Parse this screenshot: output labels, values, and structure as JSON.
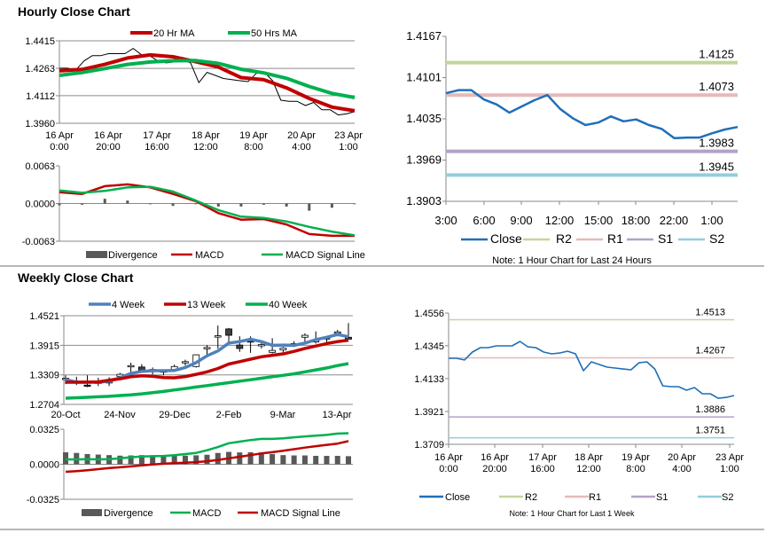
{
  "sections": [
    {
      "title": "Hourly Close Chart"
    },
    {
      "title": "Weekly Close Chart"
    }
  ],
  "chart_data": [
    {
      "type": "line",
      "title": "",
      "ylim": [
        1.396,
        1.4415
      ],
      "yticks": [
        "1.4415",
        "1.4263",
        "1.4112",
        "1.3960"
      ],
      "xticks": [
        [
          "16 Apr",
          "0:00"
        ],
        [
          "16 Apr",
          "20:00"
        ],
        [
          "17 Apr",
          "16:00"
        ],
        [
          "18 Apr",
          "12:00"
        ],
        [
          "19 Apr",
          "8:00"
        ],
        [
          "20 Apr",
          "4:00"
        ],
        [
          "23 Apr",
          "1:00"
        ]
      ],
      "grid": true,
      "legend": "top",
      "series": [
        {
          "type": "line",
          "color": "#000000",
          "values": [
            1.4264,
            1.4264,
            1.4253,
            1.4304,
            1.4333,
            1.4333,
            1.4344,
            1.4344,
            1.4344,
            1.4373,
            1.4338,
            1.4333,
            1.4304,
            1.4293,
            1.4298,
            1.431,
            1.4293,
            1.4184,
            1.4241,
            1.4224,
            1.4207,
            1.4201,
            1.4195,
            1.419,
            1.4235,
            1.4241,
            1.4195,
            1.4087,
            1.4081,
            1.4081,
            1.4058,
            1.4075,
            1.4035,
            1.4035,
            1.4006,
            1.4012,
            1.4024
          ]
        },
        {
          "type": "line",
          "name": "20 Hr MA",
          "color": "#c00000",
          "values": [
            1.4249,
            1.4257,
            1.4285,
            1.432,
            1.4337,
            1.4327,
            1.43,
            1.427,
            1.4212,
            1.42,
            1.4155,
            1.4097,
            1.4049,
            1.4029
          ]
        },
        {
          "type": "line",
          "name": "50 Hrs MA",
          "color": "#00b050",
          "values": [
            1.4224,
            1.424,
            1.4262,
            1.4285,
            1.4298,
            1.4305,
            1.4306,
            1.429,
            1.4258,
            1.4238,
            1.4208,
            1.4163,
            1.4125,
            1.4102
          ]
        }
      ]
    },
    {
      "type": "line",
      "title": "",
      "ylim": [
        -0.0063,
        0.0063
      ],
      "yticks": [
        "0.0063",
        "0.0000",
        "-0.0063"
      ],
      "xticks": [],
      "grid": false,
      "legend": "bottom",
      "series": [
        {
          "type": "bar",
          "name": "Divergence",
          "color": "#595959",
          "values": [
            -0.0003,
            -0.0002,
            0.0008,
            0.0005,
            -0.0001,
            -0.0004,
            -0.0001,
            -0.0005,
            -0.0005,
            -0.0002,
            -0.0005,
            -0.0012,
            -0.0007,
            -0.0001
          ]
        },
        {
          "type": "line",
          "name": "MACD",
          "color": "#c00000",
          "values": [
            0.0019,
            0.0016,
            0.0029,
            0.0032,
            0.0027,
            0.0016,
            0.0004,
            -0.0016,
            -0.0027,
            -0.0026,
            -0.0035,
            -0.0051,
            -0.0054,
            -0.0054
          ]
        },
        {
          "type": "line",
          "name": "MACD Signal Line",
          "color": "#00b050",
          "values": [
            0.0022,
            0.0018,
            0.0021,
            0.0027,
            0.0028,
            0.002,
            0.0005,
            -0.0011,
            -0.0022,
            -0.0024,
            -0.003,
            -0.0039,
            -0.0047,
            -0.0053
          ]
        }
      ]
    },
    {
      "type": "line",
      "title": "",
      "ylim": [
        1.3903,
        1.4167
      ],
      "yticks": [
        "1.4167",
        "1.4101",
        "1.4035",
        "1.3969",
        "1.3903"
      ],
      "xticks": [
        "3:00",
        "6:00",
        "9:00",
        "12:00",
        "15:00",
        "18:00",
        "22:00",
        "1:00"
      ],
      "grid": false,
      "legend": "bottom",
      "note": "Note: 1 Hour Chart for Last 24 Hours",
      "series": [
        {
          "type": "line",
          "name": "Close",
          "color": "#1f6fb8",
          "values": [
            1.4076,
            1.4081,
            1.4081,
            1.4066,
            1.4058,
            1.4045,
            1.4055,
            1.4065,
            1.4073,
            1.4051,
            1.4036,
            1.4025,
            1.4029,
            1.4039,
            1.4031,
            1.4034,
            1.4025,
            1.4019,
            1.4004,
            1.4005,
            1.4005,
            1.4012,
            1.4018,
            1.4022
          ]
        }
      ],
      "levels": [
        {
          "name": "R2",
          "value": 1.4125,
          "label": "1.4125",
          "color": "#c3d69b"
        },
        {
          "name": "R1",
          "value": 1.4073,
          "label": "1.4073",
          "color": "#e6b9b8"
        },
        {
          "name": "S1",
          "value": 1.3983,
          "label": "1.3983",
          "color": "#b3a2c7"
        },
        {
          "name": "S2",
          "value": 1.3945,
          "label": "1.3945",
          "color": "#93cddd"
        }
      ]
    },
    {
      "type": "line",
      "title": "",
      "ylim": [
        1.3709,
        1.4556
      ],
      "yticks": [
        "1.4556",
        "1.4345",
        "1.4133",
        "1.3921",
        "1.3709"
      ],
      "xticks": [
        [
          "16 Apr",
          "0:00"
        ],
        [
          "16 Apr",
          "20:00"
        ],
        [
          "17 Apr",
          "16:00"
        ],
        [
          "18 Apr",
          "12:00"
        ],
        [
          "19 Apr",
          "8:00"
        ],
        [
          "20 Apr",
          "4:00"
        ],
        [
          "23 Apr",
          "1:00"
        ]
      ],
      "grid": false,
      "legend": "bottom",
      "note": "Note: 1 Hour Chart for Last 1 Week",
      "series": [
        {
          "type": "line",
          "name": "Close",
          "color": "#1f6fb8",
          "values": [
            1.4264,
            1.4264,
            1.4253,
            1.4304,
            1.4333,
            1.4333,
            1.4344,
            1.4344,
            1.4344,
            1.4373,
            1.4338,
            1.4333,
            1.4304,
            1.4293,
            1.4298,
            1.431,
            1.4293,
            1.4184,
            1.4241,
            1.4224,
            1.4207,
            1.4201,
            1.4195,
            1.419,
            1.4235,
            1.4241,
            1.4195,
            1.4087,
            1.4081,
            1.4081,
            1.4058,
            1.4075,
            1.4035,
            1.4035,
            1.4006,
            1.4012,
            1.4024
          ]
        }
      ],
      "levels": [
        {
          "name": "R2",
          "value": 1.4513,
          "label": "1.4513",
          "color": "#c3d69b"
        },
        {
          "name": "R1",
          "value": 1.4267,
          "label": "1.4267",
          "color": "#e6b9b8"
        },
        {
          "name": "S1",
          "value": 1.3886,
          "label": "1.3886",
          "color": "#b3a2c7"
        },
        {
          "name": "S2",
          "value": 1.3751,
          "label": "1.3751",
          "color": "#93cddd"
        }
      ]
    },
    {
      "type": "line",
      "title": "",
      "ylim": [
        1.2704,
        1.4521
      ],
      "yticks": [
        "1.4521",
        "1.3915",
        "1.3309",
        "1.2704"
      ],
      "xticks": [
        "20-Oct",
        "24-Nov",
        "29-Dec",
        "2-Feb",
        "9-Mar",
        "13-Apr"
      ],
      "grid": true,
      "legend": "top",
      "series": [
        {
          "type": "candlestick",
          "color": "#000000",
          "ohlc": [
            [
              1.322,
              1.33,
              1.312,
              1.324
            ],
            [
              1.318,
              1.327,
              1.31,
              1.317
            ],
            [
              1.31,
              1.33,
              1.306,
              1.308
            ],
            [
              1.315,
              1.325,
              1.308,
              1.316
            ],
            [
              1.316,
              1.326,
              1.308,
              1.317
            ],
            [
              1.328,
              1.335,
              1.323,
              1.332
            ],
            [
              1.348,
              1.356,
              1.325,
              1.35
            ],
            [
              1.347,
              1.353,
              1.337,
              1.339
            ],
            [
              1.342,
              1.346,
              1.332,
              1.338
            ],
            [
              1.338,
              1.34,
              1.33,
              1.339
            ],
            [
              1.342,
              1.352,
              1.337,
              1.348
            ],
            [
              1.357,
              1.362,
              1.35,
              1.358
            ],
            [
              1.348,
              1.373,
              1.346,
              1.372
            ],
            [
              1.386,
              1.392,
              1.373,
              1.387
            ],
            [
              1.41,
              1.432,
              1.385,
              1.411
            ],
            [
              1.425,
              1.427,
              1.396,
              1.412
            ],
            [
              1.392,
              1.41,
              1.378,
              1.385
            ],
            [
              1.403,
              1.41,
              1.376,
              1.398
            ],
            [
              1.393,
              1.401,
              1.385,
              1.393
            ],
            [
              1.377,
              1.406,
              1.375,
              1.381
            ],
            [
              1.382,
              1.388,
              1.377,
              1.386
            ],
            [
              1.395,
              1.4,
              1.388,
              1.394
            ],
            [
              1.408,
              1.416,
              1.395,
              1.412
            ],
            [
              1.4,
              1.42,
              1.395,
              1.401
            ],
            [
              1.407,
              1.408,
              1.398,
              1.405
            ],
            [
              1.418,
              1.423,
              1.41,
              1.419
            ],
            [
              1.408,
              1.437,
              1.404,
              1.404
            ]
          ]
        },
        {
          "type": "line",
          "name": "4 Week",
          "color": "#4f81bd",
          "values": [
            1.3213,
            1.316,
            1.3158,
            1.3158,
            1.318,
            1.325,
            1.334,
            1.338,
            1.3394,
            1.3394,
            1.34,
            1.346,
            1.356,
            1.37,
            1.38,
            1.396,
            1.399,
            1.404,
            1.399,
            1.3915,
            1.392,
            1.3915,
            1.396,
            1.403,
            1.408,
            1.4135,
            1.409
          ]
        },
        {
          "type": "line",
          "name": "13 Week",
          "color": "#c00000",
          "values": [
            1.3158,
            1.3158,
            1.316,
            1.3165,
            1.32,
            1.323,
            1.327,
            1.329,
            1.328,
            1.3255,
            1.325,
            1.3275,
            1.332,
            1.337,
            1.344,
            1.353,
            1.358,
            1.363,
            1.368,
            1.371,
            1.374,
            1.379,
            1.385,
            1.39,
            1.395,
            1.399,
            1.402
          ]
        },
        {
          "type": "line",
          "name": "40 Week",
          "color": "#00b050",
          "values": [
            1.2831,
            1.284,
            1.285,
            1.286,
            1.287,
            1.2885,
            1.29,
            1.292,
            1.2945,
            1.297,
            1.3,
            1.303,
            1.306,
            1.309,
            1.312,
            1.315,
            1.318,
            1.321,
            1.324,
            1.327,
            1.33,
            1.333,
            1.337,
            1.341,
            1.345,
            1.35,
            1.354
          ]
        }
      ]
    },
    {
      "type": "line",
      "title": "",
      "ylim": [
        -0.0325,
        0.0325
      ],
      "yticks": [
        "0.0325",
        "0.0000",
        "-0.0325"
      ],
      "xticks": [],
      "grid": false,
      "legend": "bottom",
      "series": [
        {
          "type": "bar",
          "name": "Divergence",
          "color": "#595959",
          "values": [
            0.0111,
            0.0105,
            0.0095,
            0.009,
            0.0085,
            0.008,
            0.0082,
            0.0085,
            0.0083,
            0.008,
            0.0078,
            0.008,
            0.0083,
            0.0088,
            0.0105,
            0.0115,
            0.011,
            0.0112,
            0.011,
            0.0095,
            0.0085,
            0.0082,
            0.0082,
            0.0078,
            0.0078,
            0.0078,
            0.0075
          ]
        },
        {
          "type": "line",
          "name": "MACD",
          "color": "#00b050",
          "values": [
            0.0045,
            0.0045,
            0.0047,
            0.0045,
            0.0047,
            0.0055,
            0.0065,
            0.0072,
            0.0075,
            0.0077,
            0.0085,
            0.0095,
            0.0105,
            0.013,
            0.016,
            0.0195,
            0.021,
            0.0225,
            0.0235,
            0.0235,
            0.024,
            0.025,
            0.0258,
            0.0265,
            0.0272,
            0.0285,
            0.0288
          ]
        },
        {
          "type": "line",
          "name": "MACD Signal Line",
          "color": "#c00000",
          "values": [
            -0.007,
            -0.0063,
            -0.0055,
            -0.0045,
            -0.0035,
            -0.0028,
            -0.002,
            -0.001,
            -0.0002,
            0.0005,
            0.001,
            0.0015,
            0.002,
            0.0028,
            0.004,
            0.0055,
            0.007,
            0.0085,
            0.01,
            0.0112,
            0.0125,
            0.014,
            0.0155,
            0.0168,
            0.018,
            0.0192,
            0.0215
          ]
        }
      ]
    }
  ]
}
